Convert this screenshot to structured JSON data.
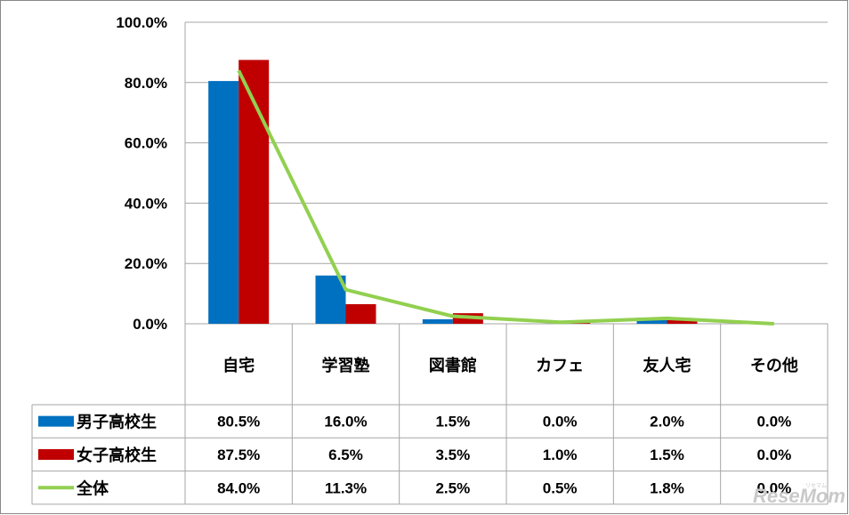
{
  "chart_data": {
    "type": "bar",
    "categories": [
      "自宅",
      "学習塾",
      "図書館",
      "カフェ",
      "友人宅",
      "その他"
    ],
    "series": [
      {
        "name": "男子高校生",
        "type": "bar",
        "color": "#0070C0",
        "values": [
          80.5,
          16.0,
          1.5,
          0.0,
          2.0,
          0.0
        ],
        "labels": [
          "80.5%",
          "16.0%",
          "1.5%",
          "0.0%",
          "2.0%",
          "0.0%"
        ]
      },
      {
        "name": "女子高校生",
        "type": "bar",
        "color": "#C00000",
        "values": [
          87.5,
          6.5,
          3.5,
          1.0,
          1.5,
          0.0
        ],
        "labels": [
          "87.5%",
          "6.5%",
          "3.5%",
          "1.0%",
          "1.5%",
          "0.0%"
        ]
      },
      {
        "name": "全体",
        "type": "line",
        "color": "#92D050",
        "values": [
          84.0,
          11.3,
          2.5,
          0.5,
          1.8,
          0.0
        ],
        "labels": [
          "84.0%",
          "11.3%",
          "2.5%",
          "0.5%",
          "1.8%",
          "0.0%"
        ]
      }
    ],
    "ylim": [
      0,
      100
    ],
    "yticks": [
      "0.0%",
      "20.0%",
      "40.0%",
      "60.0%",
      "80.0%",
      "100.0%"
    ],
    "ytick_values": [
      0,
      20,
      40,
      60,
      80,
      100
    ],
    "grid": true,
    "legend": "data-table",
    "title": "",
    "xlabel": "",
    "ylabel": ""
  },
  "watermark": {
    "text": "ReseMom",
    "sub": "リセマム"
  }
}
